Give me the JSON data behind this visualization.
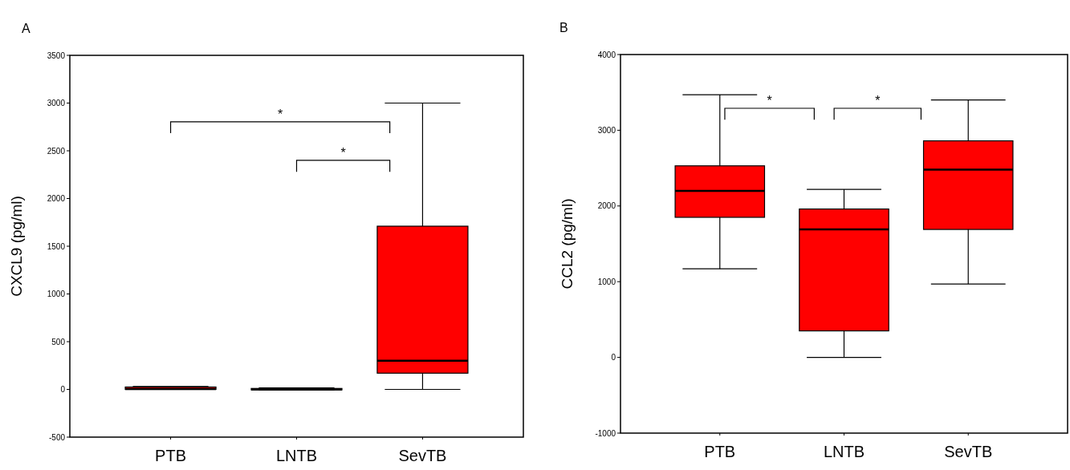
{
  "chart_data": [
    {
      "type": "box",
      "title": "A",
      "ylabel": "CXCL9 (pg/ml)",
      "categories": [
        "PTB",
        "LNTB",
        "SevTB"
      ],
      "color": "#ff0000",
      "ylim": [
        -500,
        3500
      ],
      "yticks": [
        -500,
        0,
        500,
        1000,
        1500,
        2000,
        2500,
        3000,
        3500
      ],
      "grid": false,
      "boxes": [
        {
          "low": 0,
          "q1": 0,
          "median": 5,
          "q3": 25,
          "high": 30
        },
        {
          "low": -5,
          "q1": -5,
          "median": 0,
          "q3": 10,
          "high": 15
        },
        {
          "low": 0,
          "q1": 170,
          "median": 300,
          "q3": 1710,
          "high": 3000
        }
      ],
      "annotations": [
        "*",
        "*"
      ]
    },
    {
      "type": "box",
      "title": "B",
      "ylabel": "CCL2 (pg/ml)",
      "categories": [
        "PTB",
        "LNTB",
        "SevTB"
      ],
      "color": "#ff0000",
      "ylim": [
        -1000,
        4000
      ],
      "yticks": [
        -1000,
        0,
        1000,
        2000,
        3000,
        4000
      ],
      "grid": false,
      "boxes": [
        {
          "low": 1170,
          "q1": 1850,
          "median": 2200,
          "q3": 2530,
          "high": 3470
        },
        {
          "low": 0,
          "q1": 350,
          "median": 1690,
          "q3": 1960,
          "high": 2220
        },
        {
          "low": 970,
          "q1": 1690,
          "median": 2480,
          "q3": 2860,
          "high": 3400
        }
      ],
      "annotations": [
        "*",
        "*"
      ]
    }
  ]
}
